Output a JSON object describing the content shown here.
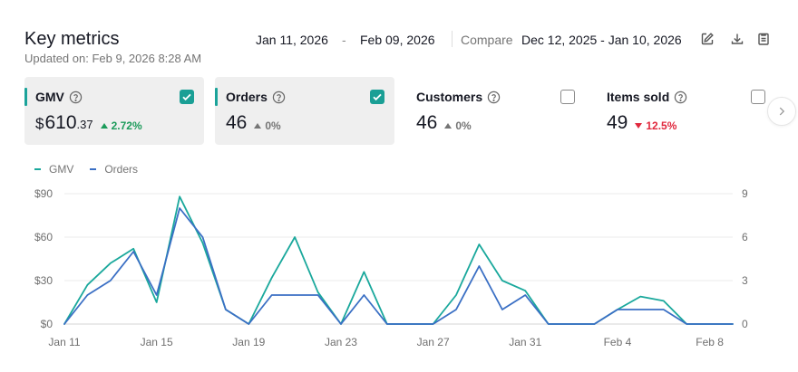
{
  "header": {
    "title": "Key metrics",
    "updated": "Updated on: Feb 9, 2026 8:28 AM",
    "date_start": "Jan 11, 2026",
    "date_separator": "-",
    "date_end": "Feb 09, 2026",
    "compare_label": "Compare",
    "compare_range": "Dec 12, 2025 - Jan 10, 2026"
  },
  "cards": [
    {
      "name": "GMV",
      "currency": "$",
      "value_int": "610",
      "value_dec": ".37",
      "delta": "2.72%",
      "direction": "up",
      "checked": true
    },
    {
      "name": "Orders",
      "value": "46",
      "delta": "0%",
      "direction": "flat",
      "checked": true
    },
    {
      "name": "Customers",
      "value": "46",
      "delta": "0%",
      "direction": "flat",
      "checked": false
    },
    {
      "name": "Items sold",
      "value": "49",
      "delta": "12.5%",
      "direction": "down",
      "checked": false
    }
  ],
  "colors": {
    "gmv": "#1aa89c",
    "orders": "#3a6fc4",
    "accent": "#1a9f95",
    "up": "#1b9b5a",
    "down": "#e0283d"
  },
  "chart_data": {
    "type": "line",
    "title": "",
    "xlabel": "",
    "ylabel": "",
    "legend": [
      "GMV",
      "Orders"
    ],
    "x": [
      "Jan 11",
      "Jan 12",
      "Jan 13",
      "Jan 14",
      "Jan 15",
      "Jan 16",
      "Jan 17",
      "Jan 18",
      "Jan 19",
      "Jan 20",
      "Jan 21",
      "Jan 22",
      "Jan 23",
      "Jan 24",
      "Jan 25",
      "Jan 26",
      "Jan 27",
      "Jan 28",
      "Jan 29",
      "Jan 30",
      "Jan 31",
      "Feb 1",
      "Feb 2",
      "Feb 3",
      "Feb 4",
      "Feb 5",
      "Feb 6",
      "Feb 7",
      "Feb 8",
      "Feb 9"
    ],
    "x_tick_labels": [
      "Jan 11",
      "Jan 15",
      "Jan 19",
      "Jan 23",
      "Jan 27",
      "Jan 31",
      "Feb 4",
      "Feb 8"
    ],
    "y_left_ticks": [
      "$0",
      "$30",
      "$60",
      "$90"
    ],
    "y_left_range": [
      0,
      90
    ],
    "y_right_ticks": [
      "0",
      "3",
      "6",
      "9"
    ],
    "y_right_range": [
      0,
      9
    ],
    "series": [
      {
        "name": "GMV",
        "axis": "left",
        "values": [
          0,
          27,
          42,
          52,
          15,
          88,
          56,
          10,
          0,
          32,
          60,
          22,
          0,
          36,
          0,
          0,
          0,
          20,
          55,
          30,
          23,
          0,
          0,
          0,
          10,
          19,
          16,
          0,
          0,
          0
        ]
      },
      {
        "name": "Orders",
        "axis": "right",
        "values": [
          0,
          2,
          3,
          5,
          2,
          8,
          6,
          1,
          0,
          2,
          2,
          2,
          0,
          2,
          0,
          0,
          0,
          1,
          4,
          1,
          2,
          0,
          0,
          0,
          1,
          1,
          1,
          0,
          0,
          0
        ]
      }
    ]
  }
}
